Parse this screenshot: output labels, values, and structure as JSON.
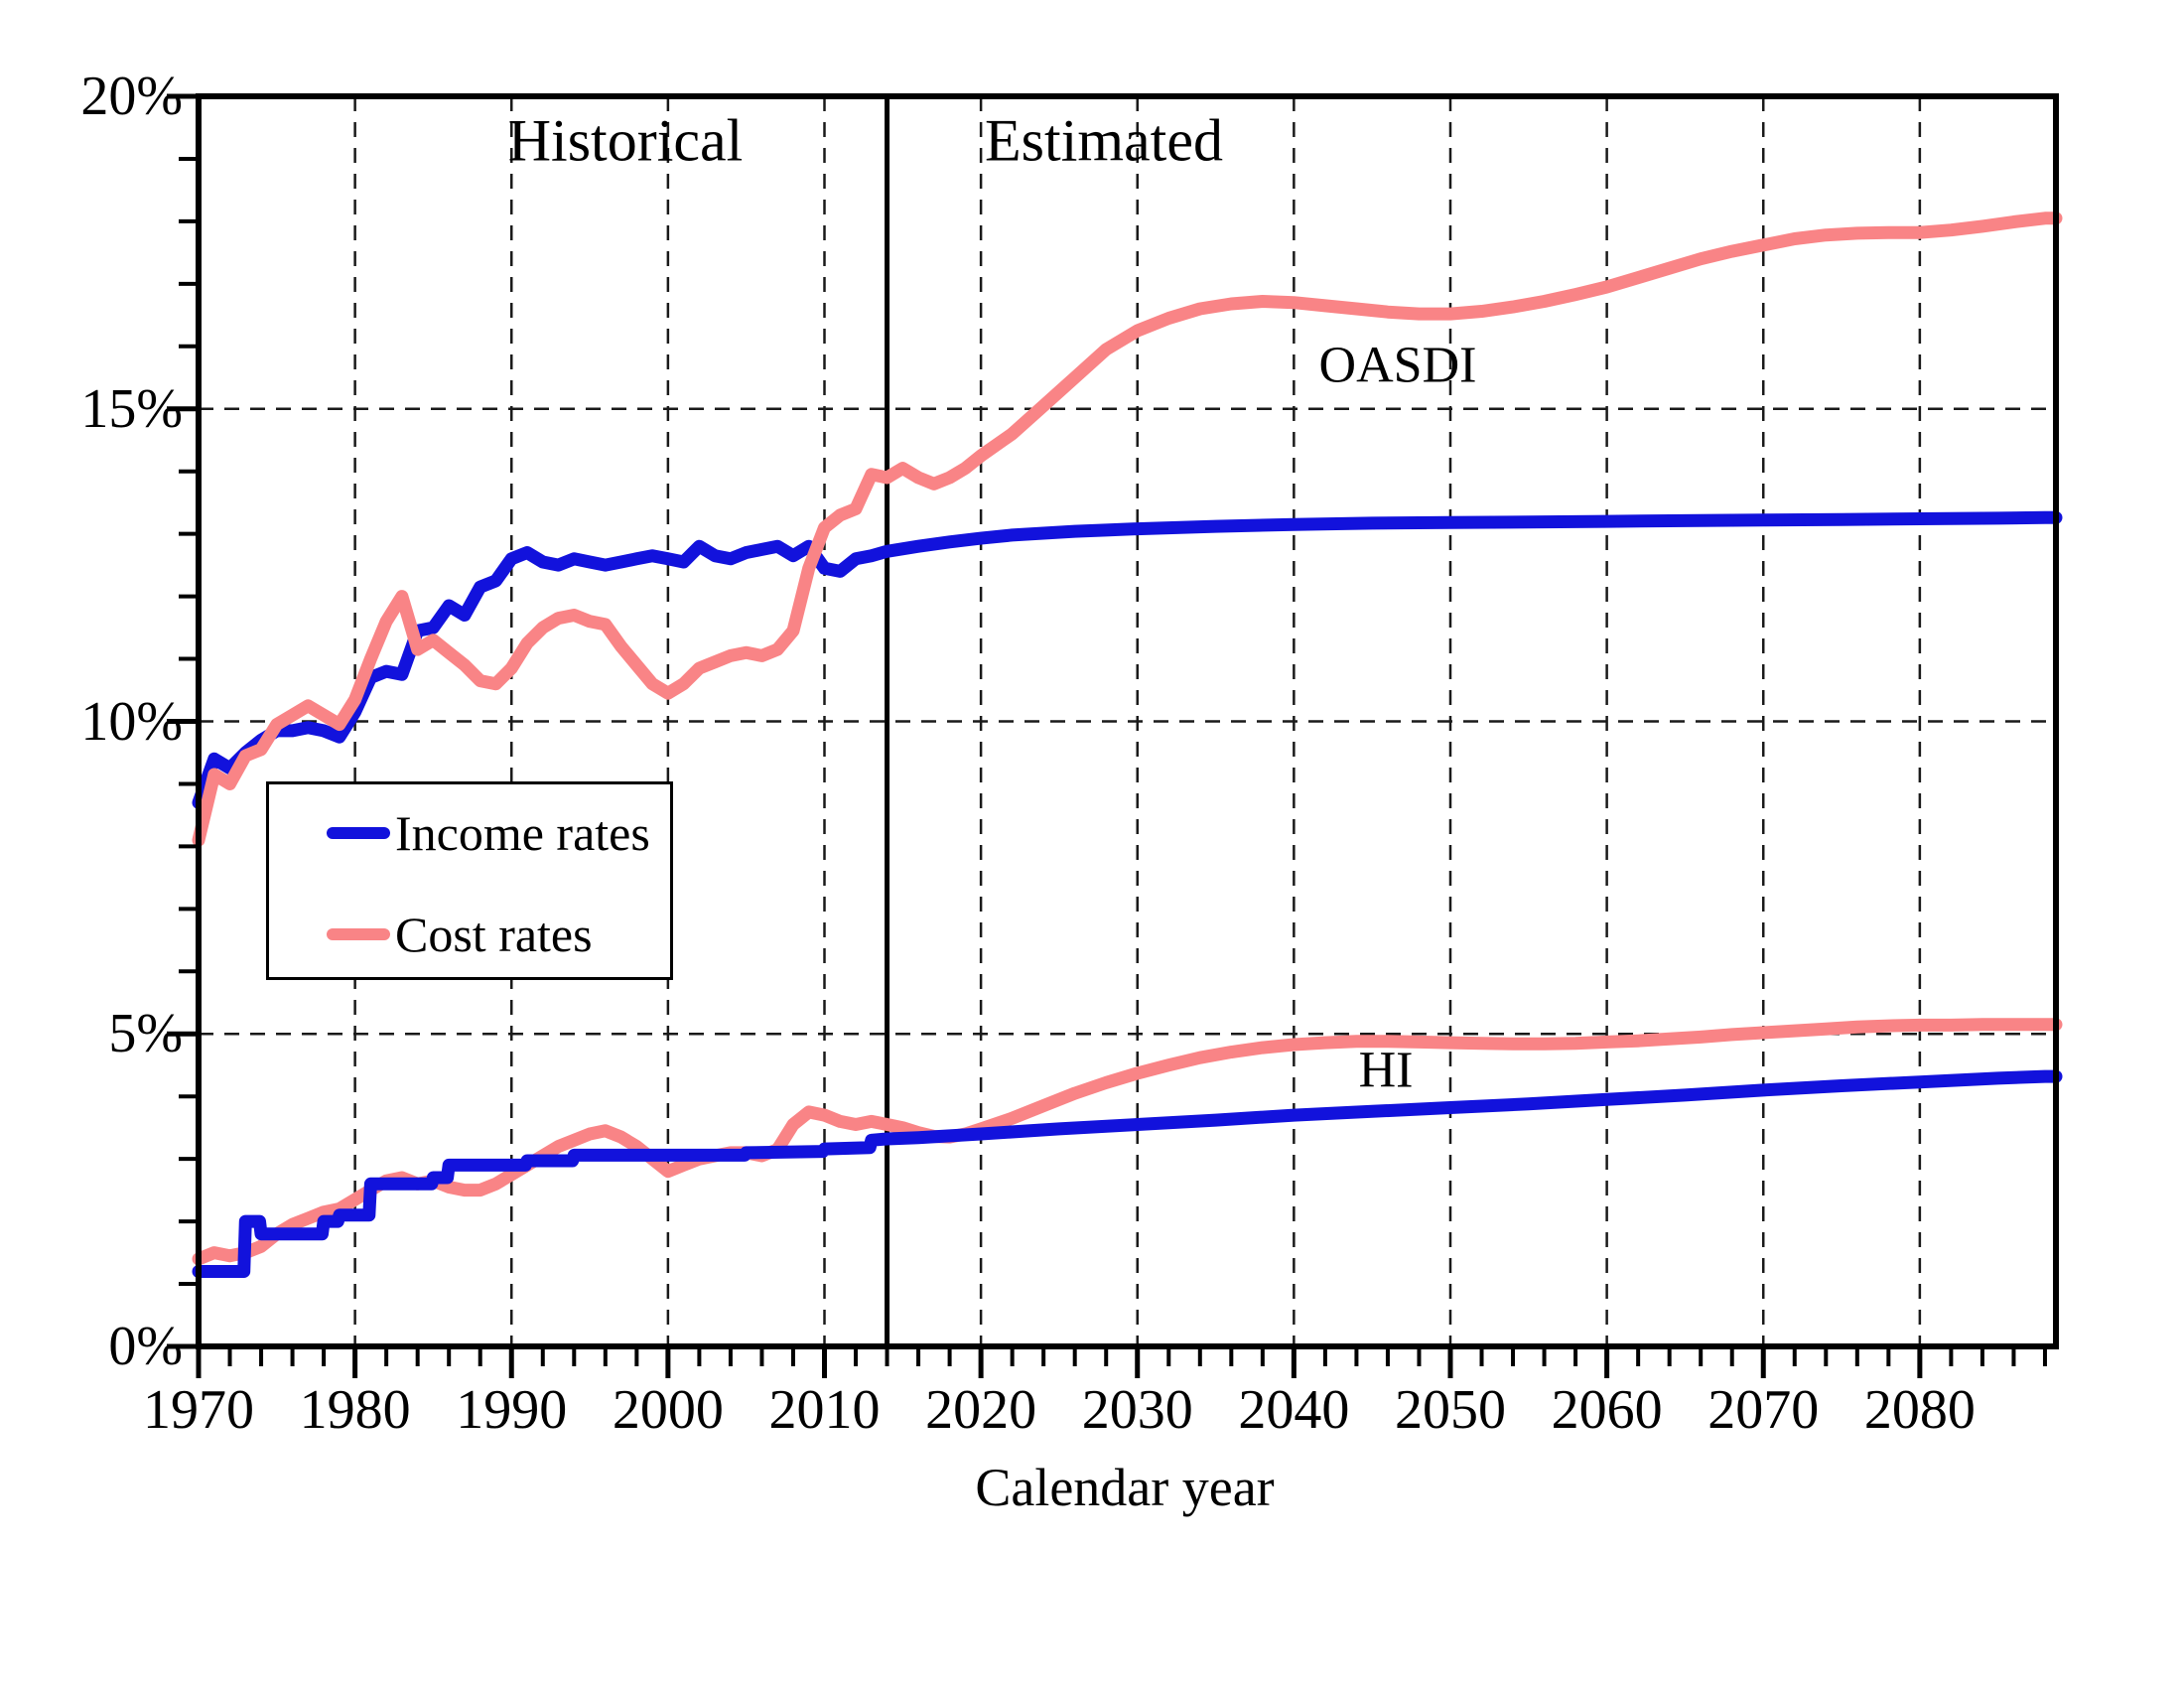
{
  "annotations": {
    "historical": "Historical",
    "estimated": "Estimated",
    "oasdi": "OASDI",
    "hi": "HI"
  },
  "legend": {
    "income_label": "Income rates",
    "cost_label": "Cost rates"
  },
  "axes": {
    "x_title": "Calendar year",
    "y_ticks": [
      {
        "label": "20%",
        "value": 20
      },
      {
        "label": "15%",
        "value": 15
      },
      {
        "label": "10%",
        "value": 10
      },
      {
        "label": "5%",
        "value": 5
      },
      {
        "label": "0%",
        "value": 0
      }
    ],
    "x_ticks": [
      {
        "label": "1970",
        "value": 1970
      },
      {
        "label": "1980",
        "value": 1980
      },
      {
        "label": "1990",
        "value": 1990
      },
      {
        "label": "2000",
        "value": 2000
      },
      {
        "label": "2010",
        "value": 2010
      },
      {
        "label": "2020",
        "value": 2020
      },
      {
        "label": "2030",
        "value": 2030
      },
      {
        "label": "2040",
        "value": 2040
      },
      {
        "label": "2050",
        "value": 2050
      },
      {
        "label": "2060",
        "value": 2060
      },
      {
        "label": "2070",
        "value": 2070
      },
      {
        "label": "2080",
        "value": 2080
      }
    ]
  },
  "colors": {
    "income": "#1212DC",
    "cost": "#F98486",
    "axis": "#000000",
    "grid": "#1a1a1a",
    "background": "#ffffff"
  },
  "divider_year": 2014,
  "chart_data": {
    "type": "line",
    "title": "",
    "xlabel": "Calendar year",
    "ylabel": "",
    "x_range": [
      1970,
      2088.7
    ],
    "y_range": [
      0,
      20
    ],
    "y_major_grid_percent": [
      5,
      10,
      15
    ],
    "x_major_grid_years": [
      1980,
      1990,
      2000,
      2010,
      2020,
      2030,
      2040,
      2050,
      2060,
      2070,
      2080
    ],
    "grid_style": "dashed",
    "legend_position": "upper-left-inside",
    "historical_estimated_boundary": 2014,
    "series": [
      {
        "id": "hi_cost",
        "group": "HI",
        "kind": "Cost rates",
        "color_key": "cost",
        "points": [
          [
            1970,
            1.4
          ],
          [
            1971,
            1.5
          ],
          [
            1972,
            1.45
          ],
          [
            1973,
            1.5
          ],
          [
            1974,
            1.6
          ],
          [
            1975,
            1.8
          ],
          [
            1976,
            1.95
          ],
          [
            1977,
            2.05
          ],
          [
            1978,
            2.15
          ],
          [
            1979,
            2.2
          ],
          [
            1980,
            2.35
          ],
          [
            1981,
            2.5
          ],
          [
            1982,
            2.65
          ],
          [
            1983,
            2.7
          ],
          [
            1984,
            2.6
          ],
          [
            1985,
            2.65
          ],
          [
            1986,
            2.55
          ],
          [
            1987,
            2.5
          ],
          [
            1988,
            2.5
          ],
          [
            1989,
            2.6
          ],
          [
            1990,
            2.75
          ],
          [
            1991,
            2.9
          ],
          [
            1992,
            3.05
          ],
          [
            1993,
            3.2
          ],
          [
            1994,
            3.3
          ],
          [
            1995,
            3.4
          ],
          [
            1996,
            3.45
          ],
          [
            1997,
            3.35
          ],
          [
            1998,
            3.2
          ],
          [
            1999,
            3.0
          ],
          [
            2000,
            2.8
          ],
          [
            2001,
            2.9
          ],
          [
            2002,
            3.0
          ],
          [
            2003,
            3.05
          ],
          [
            2004,
            3.1
          ],
          [
            2005,
            3.1
          ],
          [
            2006,
            3.05
          ],
          [
            2007,
            3.15
          ],
          [
            2008,
            3.55
          ],
          [
            2009,
            3.75
          ],
          [
            2010,
            3.7
          ],
          [
            2011,
            3.6
          ],
          [
            2012,
            3.55
          ],
          [
            2013,
            3.6
          ],
          [
            2014,
            3.55
          ],
          [
            2015,
            3.5
          ],
          [
            2016,
            3.42
          ],
          [
            2017,
            3.36
          ],
          [
            2018,
            3.35
          ],
          [
            2019,
            3.4
          ],
          [
            2020,
            3.48
          ],
          [
            2022,
            3.65
          ],
          [
            2024,
            3.85
          ],
          [
            2026,
            4.05
          ],
          [
            2028,
            4.22
          ],
          [
            2030,
            4.37
          ],
          [
            2032,
            4.5
          ],
          [
            2034,
            4.62
          ],
          [
            2036,
            4.71
          ],
          [
            2038,
            4.78
          ],
          [
            2040,
            4.83
          ],
          [
            2042,
            4.86
          ],
          [
            2044,
            4.88
          ],
          [
            2046,
            4.88
          ],
          [
            2048,
            4.87
          ],
          [
            2050,
            4.86
          ],
          [
            2052,
            4.85
          ],
          [
            2054,
            4.84
          ],
          [
            2056,
            4.84
          ],
          [
            2058,
            4.85
          ],
          [
            2060,
            4.87
          ],
          [
            2062,
            4.89
          ],
          [
            2064,
            4.92
          ],
          [
            2066,
            4.95
          ],
          [
            2068,
            4.99
          ],
          [
            2070,
            5.02
          ],
          [
            2072,
            5.05
          ],
          [
            2074,
            5.08
          ],
          [
            2076,
            5.11
          ],
          [
            2078,
            5.13
          ],
          [
            2080,
            5.14
          ],
          [
            2082,
            5.14
          ],
          [
            2084,
            5.15
          ],
          [
            2086,
            5.15
          ],
          [
            2088,
            5.15
          ]
        ]
      },
      {
        "id": "hi_income",
        "group": "HI",
        "kind": "Income rates",
        "color_key": "income",
        "points": [
          [
            1970,
            1.2
          ],
          [
            1972.9,
            1.2
          ],
          [
            1973,
            2.0
          ],
          [
            1973.9,
            2.0
          ],
          [
            1974,
            1.8
          ],
          [
            1977.9,
            1.8
          ],
          [
            1978,
            2.0
          ],
          [
            1978.9,
            2.0
          ],
          [
            1979,
            2.1
          ],
          [
            1980.9,
            2.1
          ],
          [
            1981,
            2.6
          ],
          [
            1984.9,
            2.6
          ],
          [
            1985,
            2.7
          ],
          [
            1985.9,
            2.7
          ],
          [
            1986,
            2.9
          ],
          [
            1990.9,
            2.9
          ],
          [
            1991,
            2.97
          ],
          [
            1993.9,
            2.97
          ],
          [
            1994,
            3.06
          ],
          [
            2004.9,
            3.06
          ],
          [
            2005,
            3.1
          ],
          [
            2009.9,
            3.12
          ],
          [
            2010,
            3.16
          ],
          [
            2012.9,
            3.18
          ],
          [
            2013,
            3.3
          ],
          [
            2014,
            3.32
          ],
          [
            2016,
            3.34
          ],
          [
            2020,
            3.4
          ],
          [
            2025,
            3.48
          ],
          [
            2030,
            3.55
          ],
          [
            2035,
            3.62
          ],
          [
            2040,
            3.7
          ],
          [
            2045,
            3.76
          ],
          [
            2050,
            3.82
          ],
          [
            2055,
            3.88
          ],
          [
            2060,
            3.95
          ],
          [
            2065,
            4.02
          ],
          [
            2070,
            4.1
          ],
          [
            2075,
            4.17
          ],
          [
            2080,
            4.23
          ],
          [
            2085,
            4.29
          ],
          [
            2088,
            4.32
          ]
        ]
      },
      {
        "id": "oasdi_income",
        "group": "OASDI",
        "kind": "Income rates",
        "color_key": "income",
        "points": [
          [
            1970,
            8.7
          ],
          [
            1971,
            9.4
          ],
          [
            1972,
            9.25
          ],
          [
            1973,
            9.5
          ],
          [
            1974,
            9.7
          ],
          [
            1975,
            9.85
          ],
          [
            1976,
            9.85
          ],
          [
            1977,
            9.9
          ],
          [
            1978,
            9.85
          ],
          [
            1979,
            9.75
          ],
          [
            1980,
            10.15
          ],
          [
            1981,
            10.7
          ],
          [
            1982,
            10.8
          ],
          [
            1983,
            10.75
          ],
          [
            1984,
            11.45
          ],
          [
            1985,
            11.5
          ],
          [
            1986,
            11.85
          ],
          [
            1987,
            11.7
          ],
          [
            1988,
            12.15
          ],
          [
            1989,
            12.25
          ],
          [
            1990,
            12.6
          ],
          [
            1991,
            12.7
          ],
          [
            1992,
            12.55
          ],
          [
            1993,
            12.5
          ],
          [
            1994,
            12.6
          ],
          [
            1995,
            12.55
          ],
          [
            1996,
            12.5
          ],
          [
            1997,
            12.55
          ],
          [
            1998,
            12.6
          ],
          [
            1999,
            12.65
          ],
          [
            2000,
            12.6
          ],
          [
            2001,
            12.55
          ],
          [
            2002,
            12.8
          ],
          [
            2003,
            12.65
          ],
          [
            2004,
            12.6
          ],
          [
            2005,
            12.7
          ],
          [
            2006,
            12.75
          ],
          [
            2007,
            12.8
          ],
          [
            2008,
            12.65
          ],
          [
            2009,
            12.8
          ],
          [
            2010,
            12.45
          ],
          [
            2011,
            12.4
          ],
          [
            2012,
            12.6
          ],
          [
            2013,
            12.65
          ],
          [
            2014,
            12.72
          ],
          [
            2016,
            12.8
          ],
          [
            2018,
            12.87
          ],
          [
            2020,
            12.93
          ],
          [
            2022,
            12.98
          ],
          [
            2024,
            13.01
          ],
          [
            2026,
            13.04
          ],
          [
            2028,
            13.06
          ],
          [
            2030,
            13.08
          ],
          [
            2035,
            13.12
          ],
          [
            2040,
            13.15
          ],
          [
            2045,
            13.17
          ],
          [
            2050,
            13.18
          ],
          [
            2055,
            13.19
          ],
          [
            2060,
            13.2
          ],
          [
            2065,
            13.21
          ],
          [
            2070,
            13.22
          ],
          [
            2075,
            13.23
          ],
          [
            2080,
            13.24
          ],
          [
            2085,
            13.25
          ],
          [
            2088,
            13.26
          ]
        ]
      },
      {
        "id": "oasdi_cost",
        "group": "OASDI",
        "kind": "Cost rates",
        "color_key": "cost",
        "points": [
          [
            1970,
            8.1
          ],
          [
            1971,
            9.15
          ],
          [
            1972,
            9.0
          ],
          [
            1973,
            9.45
          ],
          [
            1974,
            9.55
          ],
          [
            1975,
            9.95
          ],
          [
            1976,
            10.1
          ],
          [
            1977,
            10.25
          ],
          [
            1978,
            10.1
          ],
          [
            1979,
            9.95
          ],
          [
            1980,
            10.35
          ],
          [
            1981,
            11.0
          ],
          [
            1982,
            11.6
          ],
          [
            1983,
            12.0
          ],
          [
            1984,
            11.15
          ],
          [
            1985,
            11.3
          ],
          [
            1986,
            11.1
          ],
          [
            1987,
            10.9
          ],
          [
            1988,
            10.65
          ],
          [
            1989,
            10.6
          ],
          [
            1990,
            10.85
          ],
          [
            1991,
            11.25
          ],
          [
            1992,
            11.5
          ],
          [
            1993,
            11.65
          ],
          [
            1994,
            11.7
          ],
          [
            1995,
            11.6
          ],
          [
            1996,
            11.55
          ],
          [
            1997,
            11.2
          ],
          [
            1998,
            10.9
          ],
          [
            1999,
            10.6
          ],
          [
            2000,
            10.45
          ],
          [
            2001,
            10.6
          ],
          [
            2002,
            10.85
          ],
          [
            2003,
            10.95
          ],
          [
            2004,
            11.05
          ],
          [
            2005,
            11.1
          ],
          [
            2006,
            11.05
          ],
          [
            2007,
            11.15
          ],
          [
            2008,
            11.45
          ],
          [
            2009,
            12.45
          ],
          [
            2010,
            13.1
          ],
          [
            2011,
            13.3
          ],
          [
            2012,
            13.4
          ],
          [
            2013,
            13.95
          ],
          [
            2014,
            13.9
          ],
          [
            2015,
            14.05
          ],
          [
            2016,
            13.9
          ],
          [
            2017,
            13.8
          ],
          [
            2018,
            13.9
          ],
          [
            2019,
            14.05
          ],
          [
            2020,
            14.25
          ],
          [
            2022,
            14.6
          ],
          [
            2024,
            15.05
          ],
          [
            2026,
            15.5
          ],
          [
            2028,
            15.95
          ],
          [
            2030,
            16.25
          ],
          [
            2032,
            16.45
          ],
          [
            2034,
            16.6
          ],
          [
            2036,
            16.68
          ],
          [
            2038,
            16.72
          ],
          [
            2040,
            16.7
          ],
          [
            2042,
            16.65
          ],
          [
            2044,
            16.6
          ],
          [
            2046,
            16.55
          ],
          [
            2048,
            16.52
          ],
          [
            2050,
            16.52
          ],
          [
            2052,
            16.56
          ],
          [
            2054,
            16.63
          ],
          [
            2056,
            16.72
          ],
          [
            2058,
            16.83
          ],
          [
            2060,
            16.95
          ],
          [
            2062,
            17.1
          ],
          [
            2064,
            17.25
          ],
          [
            2066,
            17.4
          ],
          [
            2068,
            17.52
          ],
          [
            2070,
            17.62
          ],
          [
            2072,
            17.72
          ],
          [
            2074,
            17.78
          ],
          [
            2076,
            17.81
          ],
          [
            2078,
            17.82
          ],
          [
            2080,
            17.82
          ],
          [
            2082,
            17.86
          ],
          [
            2084,
            17.92
          ],
          [
            2086,
            17.99
          ],
          [
            2088,
            18.05
          ]
        ]
      }
    ]
  }
}
